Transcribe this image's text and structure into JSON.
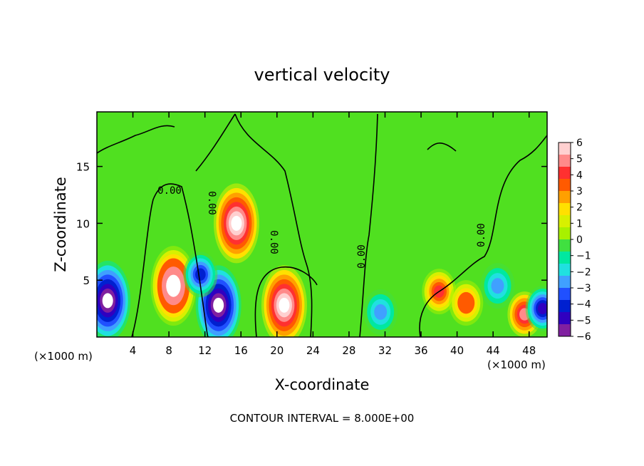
{
  "chart_data": {
    "type": "heatmap",
    "title": "vertical velocity",
    "xlabel": "X-coordinate",
    "ylabel": "Z-coordinate",
    "x_units": "(×1000 m)",
    "xlim": [
      0,
      50
    ],
    "ylim": [
      0,
      19.8
    ],
    "x_ticks": [
      4,
      8,
      12,
      16,
      20,
      24,
      28,
      32,
      36,
      40,
      44,
      48
    ],
    "y_ticks": [
      5,
      10,
      15
    ],
    "colorbar": {
      "ticks": [
        6,
        5,
        4,
        3,
        2,
        1,
        0,
        -1,
        -2,
        -3,
        -4,
        -5,
        -6
      ],
      "colors": [
        "#ffd0d0",
        "#ff8a8a",
        "#ff3030",
        "#ff5a00",
        "#ffa000",
        "#ffe000",
        "#d8f000",
        "#a8f000",
        "#40e040",
        "#00e8a0",
        "#20e0e0",
        "#40a0ff",
        "#2050ff",
        "#0020d0",
        "#3000c0",
        "#8020a0"
      ]
    },
    "contour_label": "0.00",
    "annotation": "CONTOUR INTERVAL = 8.000E+00",
    "features": [
      {
        "x": 8.5,
        "z": 4.5,
        "w": 7.2
      },
      {
        "x": 15.5,
        "z": 10,
        "w": 6.5
      },
      {
        "x": 20.8,
        "z": 2.8,
        "w": 7.0
      },
      {
        "x": 1.2,
        "z": 3.2,
        "w": -7.0
      },
      {
        "x": 13.5,
        "z": 2.8,
        "w": -6.5
      },
      {
        "x": 11.5,
        "z": 5.5,
        "w": -4.5
      },
      {
        "x": 31.5,
        "z": 2.2,
        "w": -3.0
      },
      {
        "x": 38.0,
        "z": 4.0,
        "w": 4.5
      },
      {
        "x": 41.0,
        "z": 3.0,
        "w": 4.0
      },
      {
        "x": 47.5,
        "z": 2.0,
        "w": 5.0
      },
      {
        "x": 44.5,
        "z": 4.5,
        "w": -3.0
      },
      {
        "x": 49.5,
        "z": 2.5,
        "w": -5.5
      }
    ]
  }
}
